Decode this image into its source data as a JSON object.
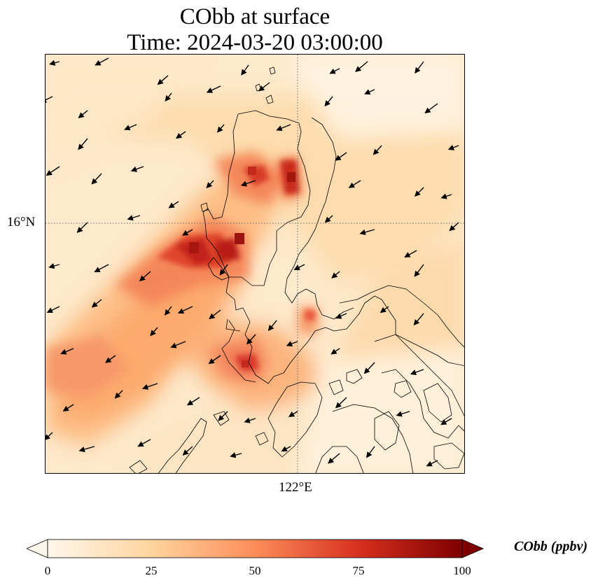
{
  "title": {
    "line1": "CObb at surface",
    "line2": "Time: 2024-03-20 03:00:00"
  },
  "map": {
    "lat_tick": "16°N",
    "lon_tick": "122°E",
    "gridline_style": "dotted"
  },
  "colorbar": {
    "label": "CObb (ppbv)",
    "min": 0,
    "max": 100,
    "ticks": [
      {
        "value": 0,
        "label": "0"
      },
      {
        "value": 25,
        "label": "25"
      },
      {
        "value": 50,
        "label": "50"
      },
      {
        "value": 75,
        "label": "75"
      },
      {
        "value": 100,
        "label": "100"
      }
    ],
    "colormap": "OrRd",
    "colors": [
      "#fff7ec",
      "#fdd49e",
      "#fc8d59",
      "#d7301f",
      "#7f0000"
    ]
  }
}
